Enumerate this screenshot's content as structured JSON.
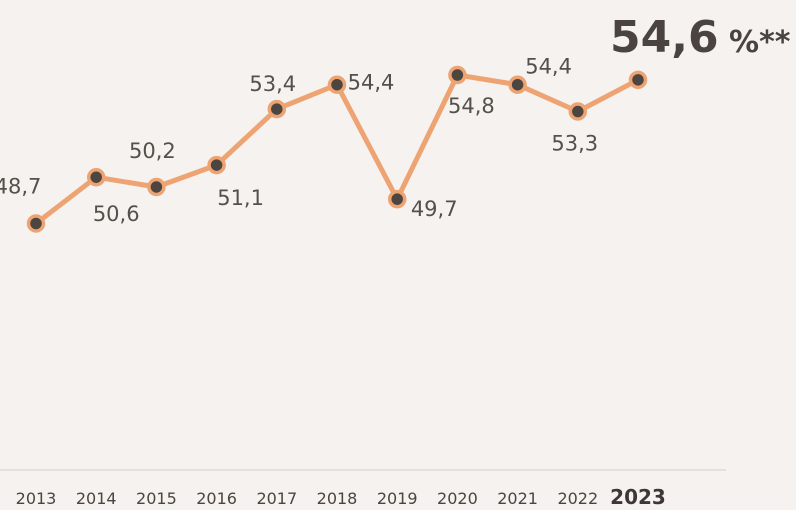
{
  "chart_data": {
    "type": "line",
    "categories": [
      "2013",
      "2014",
      "2015",
      "2016",
      "2017",
      "2018",
      "2019",
      "2020",
      "2021",
      "2022",
      "2023"
    ],
    "values": [
      48.7,
      50.6,
      50.2,
      51.1,
      53.4,
      54.4,
      49.7,
      54.8,
      54.4,
      53.3,
      54.6
    ],
    "data_labels": [
      "48,7",
      "50,6",
      "50,2",
      "51,1",
      "53,4",
      "54,4",
      "49,7",
      "54,8",
      "54,4",
      "53,3",
      ""
    ],
    "highlight": {
      "category": "2023",
      "value_text": "54,6",
      "unit_text": " %**"
    },
    "colors": {
      "line": "#eea472",
      "marker": "#4d4540",
      "baseline": "#dedad6"
    },
    "grid": false
  }
}
